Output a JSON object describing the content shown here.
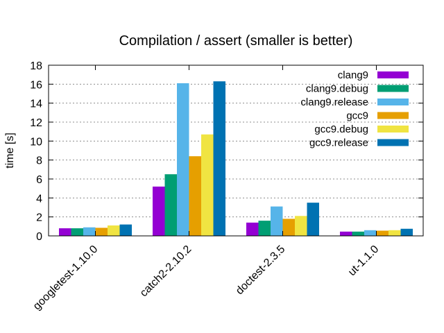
{
  "chart_data": {
    "type": "bar",
    "title": "Compilation / assert (smaller is better)",
    "xlabel": "",
    "ylabel": "time [s]",
    "ylim": [
      0,
      18
    ],
    "yticks": [
      0,
      2,
      4,
      6,
      8,
      10,
      12,
      14,
      16,
      18
    ],
    "grid": true,
    "legend_position": "top-right",
    "categories": [
      "googletest-1.10.0",
      "catch2-2.10.2",
      "doctest-2.3.5",
      "ut-1.1.0"
    ],
    "series": [
      {
        "name": "clang9",
        "color": "#9400d3",
        "values": [
          0.8,
          5.2,
          1.4,
          0.45
        ]
      },
      {
        "name": "clang9.debug",
        "color": "#009e73",
        "values": [
          0.8,
          6.5,
          1.6,
          0.45
        ]
      },
      {
        "name": "clang9.release",
        "color": "#56b4e9",
        "values": [
          0.9,
          16.1,
          3.1,
          0.6
        ]
      },
      {
        "name": "gcc9",
        "color": "#e69f00",
        "values": [
          0.85,
          8.4,
          1.8,
          0.55
        ]
      },
      {
        "name": "gcc9.debug",
        "color": "#f0e442",
        "values": [
          1.1,
          10.7,
          2.1,
          0.6
        ]
      },
      {
        "name": "gcc9.release",
        "color": "#0072b2",
        "values": [
          1.2,
          16.3,
          3.5,
          0.75
        ]
      }
    ]
  }
}
